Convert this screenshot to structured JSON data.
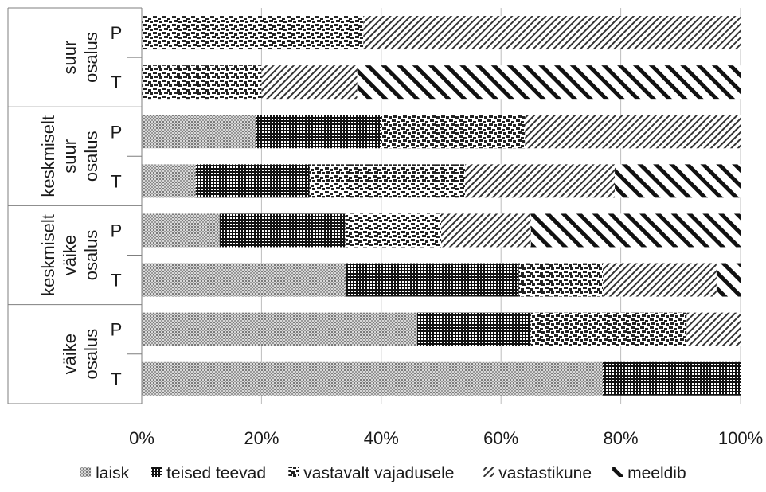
{
  "chart_data": {
    "type": "bar",
    "orientation": "horizontal",
    "stacked": "percent",
    "groups": [
      {
        "label_lines": [
          "suur",
          "osalus"
        ],
        "categories": [
          "P",
          "T"
        ]
      },
      {
        "label_lines": [
          "keskmiselt",
          "suur",
          "osalus"
        ],
        "categories": [
          "P",
          "T"
        ]
      },
      {
        "label_lines": [
          "keskmiselt",
          "väike",
          "osalus"
        ],
        "categories": [
          "P",
          "T"
        ]
      },
      {
        "label_lines": [
          "väike",
          "osalus"
        ],
        "categories": [
          "P",
          "T"
        ]
      }
    ],
    "series": [
      {
        "name": "laisk",
        "values": [
          0,
          0,
          19,
          9,
          13,
          34,
          46,
          77
        ]
      },
      {
        "name": "teised teevad",
        "values": [
          0,
          0,
          21,
          19,
          21,
          29,
          19,
          23
        ]
      },
      {
        "name": "vastavalt vajadusele",
        "values": [
          37,
          20,
          24,
          26,
          16,
          14,
          26,
          0
        ]
      },
      {
        "name": "vastastikune",
        "values": [
          63,
          16,
          36,
          25,
          15,
          19,
          9,
          0
        ]
      },
      {
        "name": "meeldib",
        "values": [
          0,
          64,
          0,
          21,
          35,
          4,
          0,
          0
        ]
      }
    ],
    "xlim": [
      0,
      100
    ],
    "xticks": [
      "0%",
      "20%",
      "40%",
      "60%",
      "80%",
      "100%"
    ],
    "grid": true,
    "legend_position": "bottom",
    "title": "",
    "xlabel": "",
    "ylabel": ""
  }
}
